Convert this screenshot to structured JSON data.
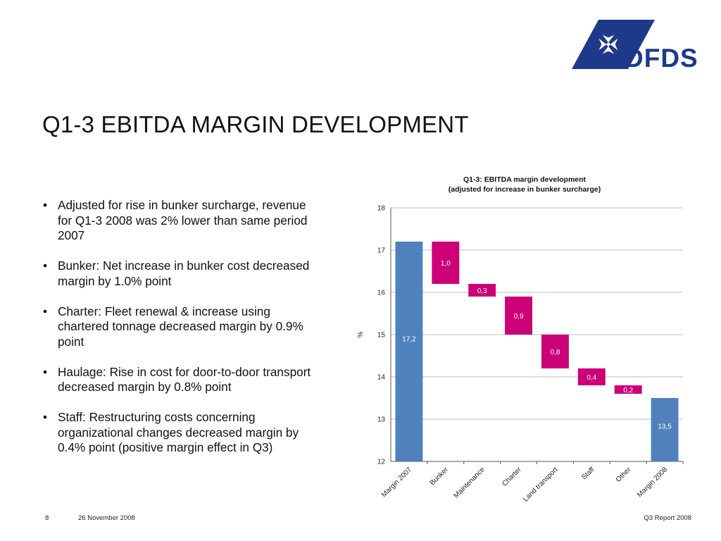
{
  "header": {
    "logo_text": "DFDS",
    "title": "Q1-3 EBITDA MARGIN DEVELOPMENT"
  },
  "bullets": [
    "Adjusted for rise in bunker surcharge, revenue for Q1-3 2008 was 2% lower than same period 2007",
    "Bunker: Net increase in bunker cost decreased margin by 1.0% point",
    "Charter: Fleet renewal & increase using chartered tonnage decreased margin by 0.9% point",
    "Haulage: Rise in cost for door-to-door transport decreased margin by 0.8% point",
    "Staff: Restructuring costs concerning organizational changes decreased margin by 0.4% point (positive margin effect in Q3)"
  ],
  "chart_data": {
    "type": "waterfall",
    "title": "Q1-3: EBITDA margin development",
    "subtitle": "(adjusted for increase in bunker surcharge)",
    "ylabel": "%",
    "ylim": [
      12,
      18
    ],
    "yticks": [
      "12",
      "13",
      "14",
      "15",
      "16",
      "17",
      "18"
    ],
    "grid": true,
    "categories": [
      "Margin 2007",
      "Bunker",
      "Maintenance",
      "Charter",
      "Land transport",
      "Staff",
      "Other",
      "Margin 2008"
    ],
    "values": [
      17.2,
      -1.0,
      -0.3,
      -0.9,
      -0.8,
      -0.4,
      -0.2,
      13.5
    ],
    "kinds": [
      "total",
      "decrease",
      "decrease",
      "decrease",
      "decrease",
      "decrease",
      "decrease",
      "total"
    ],
    "labels": [
      "17,2",
      "1,0",
      "0,3",
      "0,9",
      "0,8",
      "0,4",
      "0,2",
      "13,5"
    ],
    "colors": {
      "total": "#4f81bd",
      "decrease": "#cc0077",
      "grid": "#bdbdbd",
      "axis": "#555555"
    }
  },
  "footer": {
    "page_number": "8",
    "date": "26 November 2008",
    "report": "Q3 Report 2008"
  }
}
